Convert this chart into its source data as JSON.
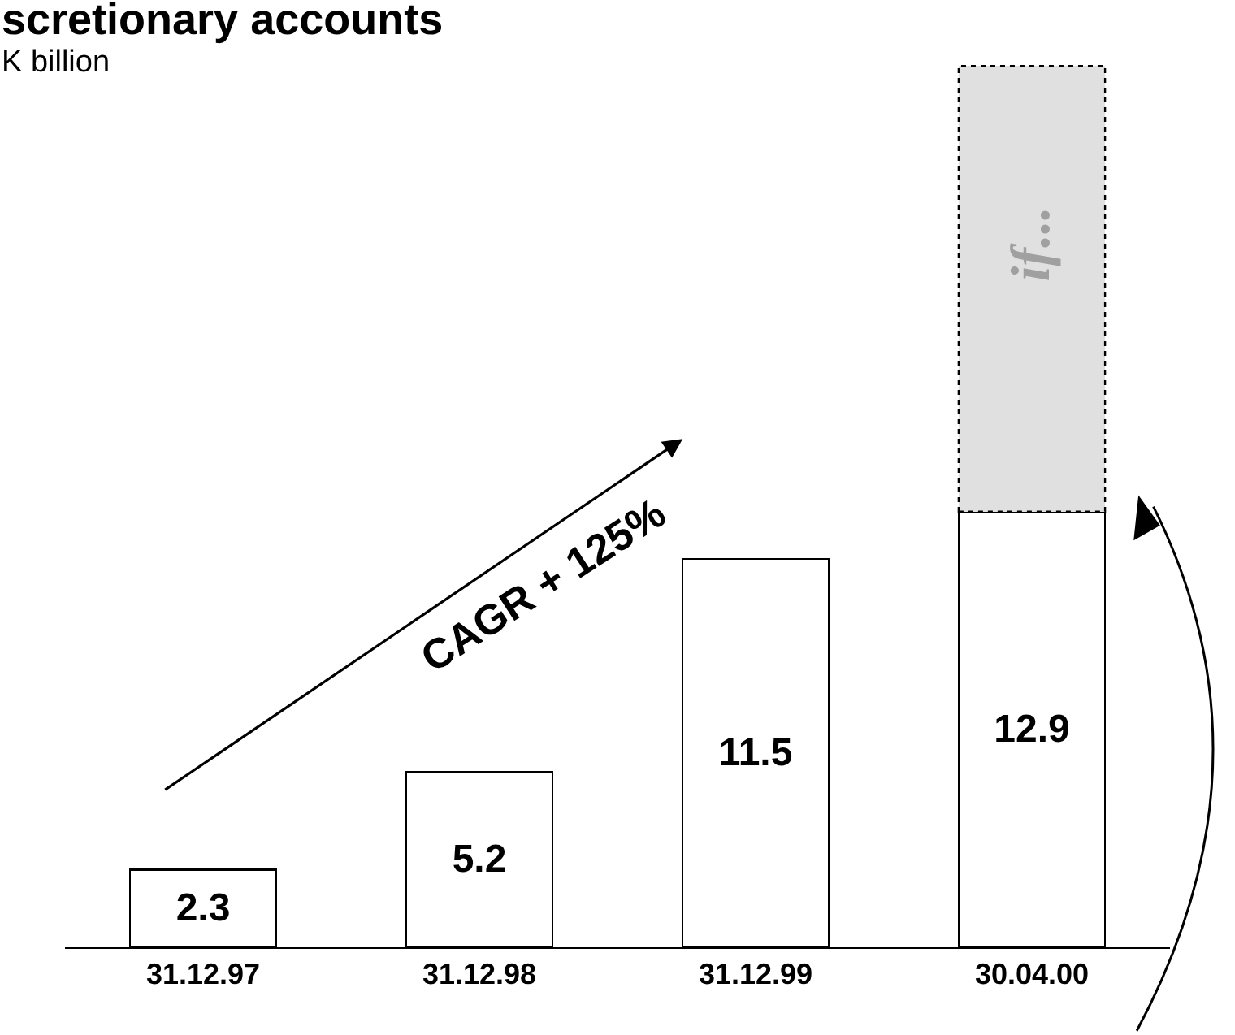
{
  "chart_data": {
    "type": "bar",
    "title": "scretionary accounts",
    "subtitle": "K billion",
    "categories": [
      "31.12.97",
      "31.12.98",
      "31.12.99",
      "30.04.00"
    ],
    "stacked": true,
    "series": [
      {
        "color": "#ffffff",
        "values": [
          2.3,
          5.2,
          11.5,
          12.9
        ],
        "value_labels": [
          "2.3",
          "5.2",
          "11.5",
          "12.9"
        ],
        "line_style": "solid"
      },
      {
        "color": "#e0e0e0",
        "values": [
          null,
          null,
          null,
          13.2
        ],
        "line_style": "dotted"
      }
    ],
    "tick_labels": "x",
    "legend": false,
    "annotations": [
      "CAGR + 125%",
      "if..."
    ]
  }
}
